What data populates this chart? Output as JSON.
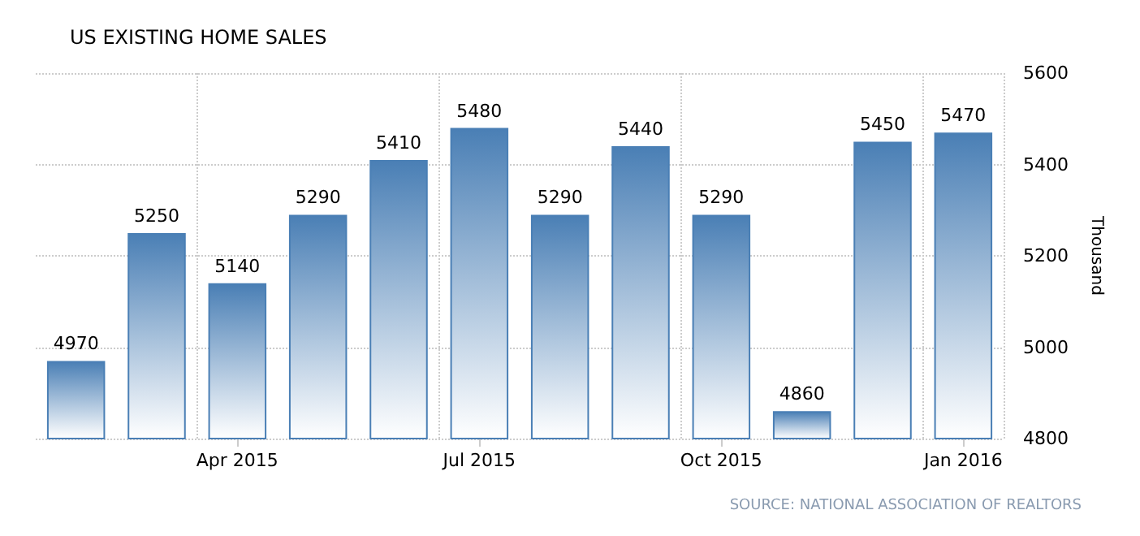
{
  "chart_data": {
    "type": "bar",
    "title": "US EXISTING HOME SALES",
    "ylabel": "Thousand",
    "categories": [
      null,
      null,
      "Apr 2015",
      null,
      null,
      "Jul 2015",
      null,
      null,
      "Oct 2015",
      null,
      null,
      "Jan 2016"
    ],
    "values": [
      4970,
      5250,
      5140,
      5290,
      5410,
      5480,
      5290,
      5440,
      5290,
      4860,
      5450,
      5470
    ],
    "color": "#4a7fb5",
    "ylim": [
      4800,
      5600
    ],
    "yticks": [
      4800,
      5000,
      5200,
      5400,
      5600
    ],
    "grid": true,
    "data_labels": true,
    "annotations": [
      "SOURCE: NATIONAL ASSOCIATION OF REALTORS"
    ]
  }
}
